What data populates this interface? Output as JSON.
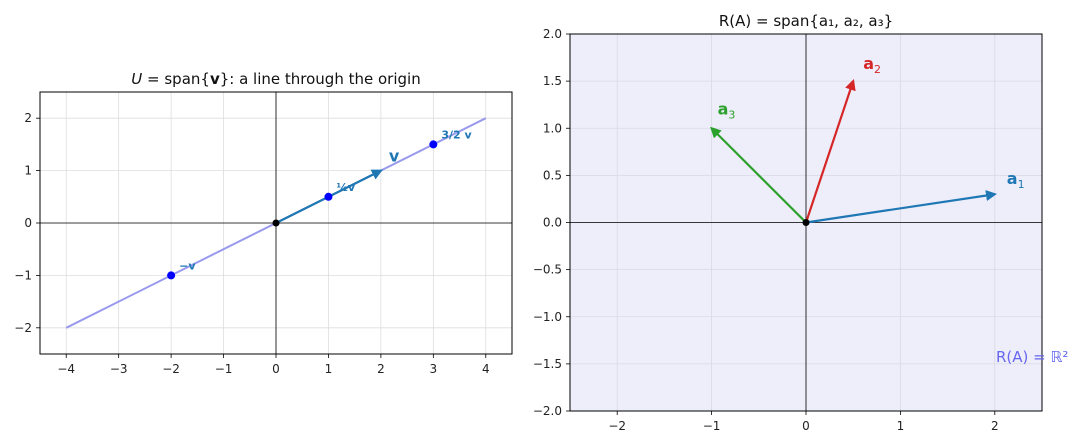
{
  "colors": {
    "span_line": "#9999ee",
    "v_vector": "#1f77b4",
    "points": "#0000ff",
    "origin": "#000000",
    "a1": "#1f77b4",
    "a2": "#d62728",
    "a3": "#2ca02c",
    "region_fill": "#eeeefb",
    "region_label": "#6666ee",
    "grid": "#dddddd"
  },
  "chart_data": [
    {
      "type": "line",
      "title_italic": "U",
      "title_rest": " = span{",
      "title_bold": "v",
      "title_end": "}: a line through the origin",
      "xlim": [
        -4.5,
        4.5
      ],
      "ylim": [
        -2.5,
        2.5
      ],
      "xticks": [
        -4,
        -3,
        -2,
        -1,
        0,
        1,
        2,
        3,
        4
      ],
      "yticks": [
        -2,
        -1,
        0,
        1,
        2
      ],
      "grid": true,
      "span_line": {
        "x": [
          -4,
          4
        ],
        "y": [
          -2,
          2
        ]
      },
      "vector": {
        "name": "v",
        "from": [
          0,
          0
        ],
        "to": [
          2,
          1
        ]
      },
      "points": [
        {
          "x": -2,
          "y": -1,
          "label": "−v"
        },
        {
          "x": 1,
          "y": 0.5,
          "label": "½v"
        },
        {
          "x": 3,
          "y": 1.5,
          "label": "3/2 v"
        }
      ],
      "origin": [
        0,
        0
      ]
    },
    {
      "type": "vector",
      "title": "R(A) = span{a₁, a₂, a₃}",
      "xlim": [
        -2.5,
        2.5
      ],
      "ylim": [
        -2.0,
        2.0
      ],
      "xticks": [
        -2,
        -1,
        0,
        1,
        2
      ],
      "yticks": [
        -2.0,
        -1.5,
        -1.0,
        -0.5,
        0.0,
        0.5,
        1.0,
        1.5,
        2.0
      ],
      "grid": true,
      "vectors": [
        {
          "name": "a1",
          "x": 2.0,
          "y": 0.3
        },
        {
          "name": "a2",
          "x": 0.5,
          "y": 1.5
        },
        {
          "name": "a3",
          "x": -1.0,
          "y": 1.0
        }
      ],
      "region_label": "R(A) = ℝ²",
      "origin": [
        0,
        0
      ]
    }
  ]
}
